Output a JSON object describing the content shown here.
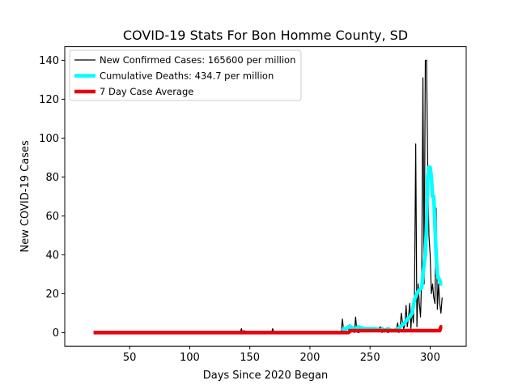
{
  "chart_data": {
    "type": "line",
    "title": "COVID-19 Stats For Bon Homme County, SD",
    "xlabel": "Days Since 2020 Began",
    "ylabel": "New COVID-19 Cases",
    "xlim": [
      -4,
      330
    ],
    "ylim": [
      -7,
      147
    ],
    "xticks": [
      50,
      100,
      150,
      200,
      250,
      300
    ],
    "yticks": [
      0,
      20,
      40,
      60,
      80,
      100,
      120,
      140
    ],
    "grid": false,
    "legend_position": "top-left",
    "series": [
      {
        "name": "New Confirmed Cases: 165600 per million",
        "color": "#000000",
        "style": "thin",
        "x": [
          20,
          60,
          100,
          142,
          143,
          144,
          145,
          150,
          168,
          169,
          170,
          190,
          226,
          227,
          228,
          232,
          233,
          234,
          236,
          237,
          238,
          239,
          240,
          245,
          246,
          247,
          250,
          255,
          259,
          260,
          261,
          263,
          265,
          268,
          272,
          273,
          274,
          275,
          276,
          277,
          278,
          279,
          280,
          281,
          282,
          283,
          284,
          285,
          286,
          287,
          288,
          289,
          290,
          291,
          292,
          293,
          294,
          295,
          296,
          297,
          298,
          299,
          300,
          301,
          302,
          303,
          304,
          305,
          306,
          307,
          308,
          309,
          310
        ],
        "y": [
          0,
          0,
          0,
          0,
          2,
          0,
          1,
          0,
          0,
          2,
          0,
          0,
          0,
          7,
          1,
          0,
          4,
          2,
          1,
          0,
          8,
          1,
          0,
          1,
          2,
          1,
          2,
          1,
          3,
          0,
          2,
          1,
          0,
          1,
          2,
          5,
          0,
          3,
          10,
          5,
          2,
          4,
          14,
          3,
          8,
          15,
          2,
          12,
          5,
          20,
          97,
          3,
          25,
          15,
          8,
          30,
          131,
          25,
          140,
          140,
          85,
          50,
          40,
          20,
          25,
          18,
          15,
          64,
          12,
          25,
          15,
          10,
          18
        ]
      },
      {
        "name": "Cumulative Deaths: 434.7 per million",
        "color": "#00ffff",
        "style": "thick",
        "x": [
          227,
          228,
          230,
          232,
          234,
          236,
          238,
          240,
          245,
          250,
          255,
          258,
          260,
          262,
          265,
          268,
          270,
          273,
          275,
          277,
          279,
          281,
          283,
          285,
          287,
          289,
          291,
          293,
          294,
          295,
          296,
          297,
          298,
          299,
          300,
          301,
          302,
          303,
          304,
          305,
          306,
          307,
          308,
          309,
          310
        ],
        "y": [
          1,
          2,
          2,
          3,
          3,
          2,
          2,
          3,
          2,
          2,
          2,
          1,
          2,
          1,
          2,
          1,
          1,
          2,
          3,
          4,
          5,
          7,
          8,
          10,
          17,
          20,
          22,
          23,
          30,
          35,
          40,
          55,
          80,
          85,
          85,
          80,
          70,
          70,
          55,
          40,
          30,
          28,
          27,
          25,
          25
        ]
      },
      {
        "name": "7 Day Case Average",
        "color": "#e8000b",
        "style": "thick",
        "x": [
          20,
          60,
          100,
          150,
          200,
          225,
          229,
          232,
          234,
          240,
          250,
          260,
          270,
          280,
          290,
          300,
          305,
          308,
          309,
          310
        ],
        "y": [
          0,
          0,
          0,
          0,
          0,
          0,
          0,
          0,
          1,
          1,
          1,
          1,
          1,
          1,
          1,
          1,
          1,
          1,
          3,
          3
        ]
      }
    ]
  }
}
